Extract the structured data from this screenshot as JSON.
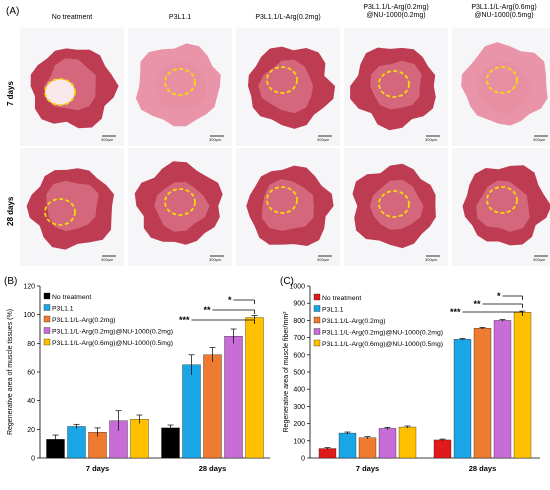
{
  "panel_a": {
    "letter": "(A)",
    "columns": [
      "No treatment",
      "P3L1.1",
      "P3L1.1/L-Arg(0.2mg)",
      "P3L1.1/L-Arg(0.2mg)\n@NU-1000(0.2mg)",
      "P3L1.1/L-Arg(0.6mg)\n@NU-1000(0.5mg)"
    ],
    "rows": [
      "7 days",
      "28 days"
    ],
    "scale_label": "300µm",
    "colors": {
      "tissue": "#b8283f",
      "tissue_light": "#e88aa0",
      "defect_circle": "#f5d90a"
    }
  },
  "chart_data": [
    {
      "panel": "(B)",
      "type": "bar",
      "categories": [
        "7 days",
        "28 days"
      ],
      "ylabel": "Regenerative area of muscle tissues (%)",
      "ylim": [
        0,
        120
      ],
      "yticks": [
        0,
        20,
        40,
        60,
        80,
        100,
        120
      ],
      "legend_position": "top-left",
      "series": [
        {
          "name": "No treatment",
          "color": "#000000",
          "values": [
            13,
            21
          ],
          "errors": [
            3,
            2
          ]
        },
        {
          "name": "P3L1.1",
          "color": "#1aa6e6",
          "values": [
            22,
            65
          ],
          "errors": [
            1.5,
            7
          ]
        },
        {
          "name": "P3L1.1/L-Arg(0.2mg)",
          "color": "#ee7b30",
          "values": [
            18,
            72
          ],
          "errors": [
            3,
            5
          ]
        },
        {
          "name": "P3L1.1/L-Arg(0.2mg)@NU-1000(0.2mg)",
          "color": "#c86dd7",
          "values": [
            26,
            85
          ],
          "errors": [
            7,
            5
          ]
        },
        {
          "name": "P3L1.1/L-Arg(0.6mg)@NU-1000(0.5mg)",
          "color": "#ffc000",
          "values": [
            27,
            98
          ],
          "errors": [
            3,
            1.5
          ]
        }
      ],
      "significance": [
        "***",
        "**",
        "*"
      ]
    },
    {
      "panel": "(C)",
      "type": "bar",
      "categories": [
        "7 days",
        "28 days"
      ],
      "ylabel": "Regenerative area of muscle fiber/mm²",
      "ylim": [
        0,
        1000
      ],
      "yticks": [
        0,
        100,
        200,
        300,
        400,
        500,
        600,
        700,
        800,
        900,
        1000
      ],
      "legend_position": "top-left",
      "series": [
        {
          "name": "No treatment",
          "color": "#e01a1a",
          "values": [
            55,
            105
          ],
          "errors": [
            5,
            5
          ]
        },
        {
          "name": "P3L1.1",
          "color": "#1aa6e6",
          "values": [
            145,
            690
          ],
          "errors": [
            6,
            5
          ]
        },
        {
          "name": "P3L1.1/L-Arg(0.2mg)",
          "color": "#ee7b30",
          "values": [
            118,
            755
          ],
          "errors": [
            6,
            4
          ]
        },
        {
          "name": "P3L1.1/L-Arg(0.2mg)@NU-1000(0.2mg)",
          "color": "#c86dd7",
          "values": [
            172,
            800
          ],
          "errors": [
            6,
            5
          ]
        },
        {
          "name": "P3L1.1/L-Arg(0.6mg)@NU-1000(0.5mg)",
          "color": "#ffc000",
          "values": [
            180,
            848
          ],
          "errors": [
            6,
            6
          ]
        }
      ],
      "significance": [
        "***",
        "**",
        "*"
      ]
    }
  ]
}
